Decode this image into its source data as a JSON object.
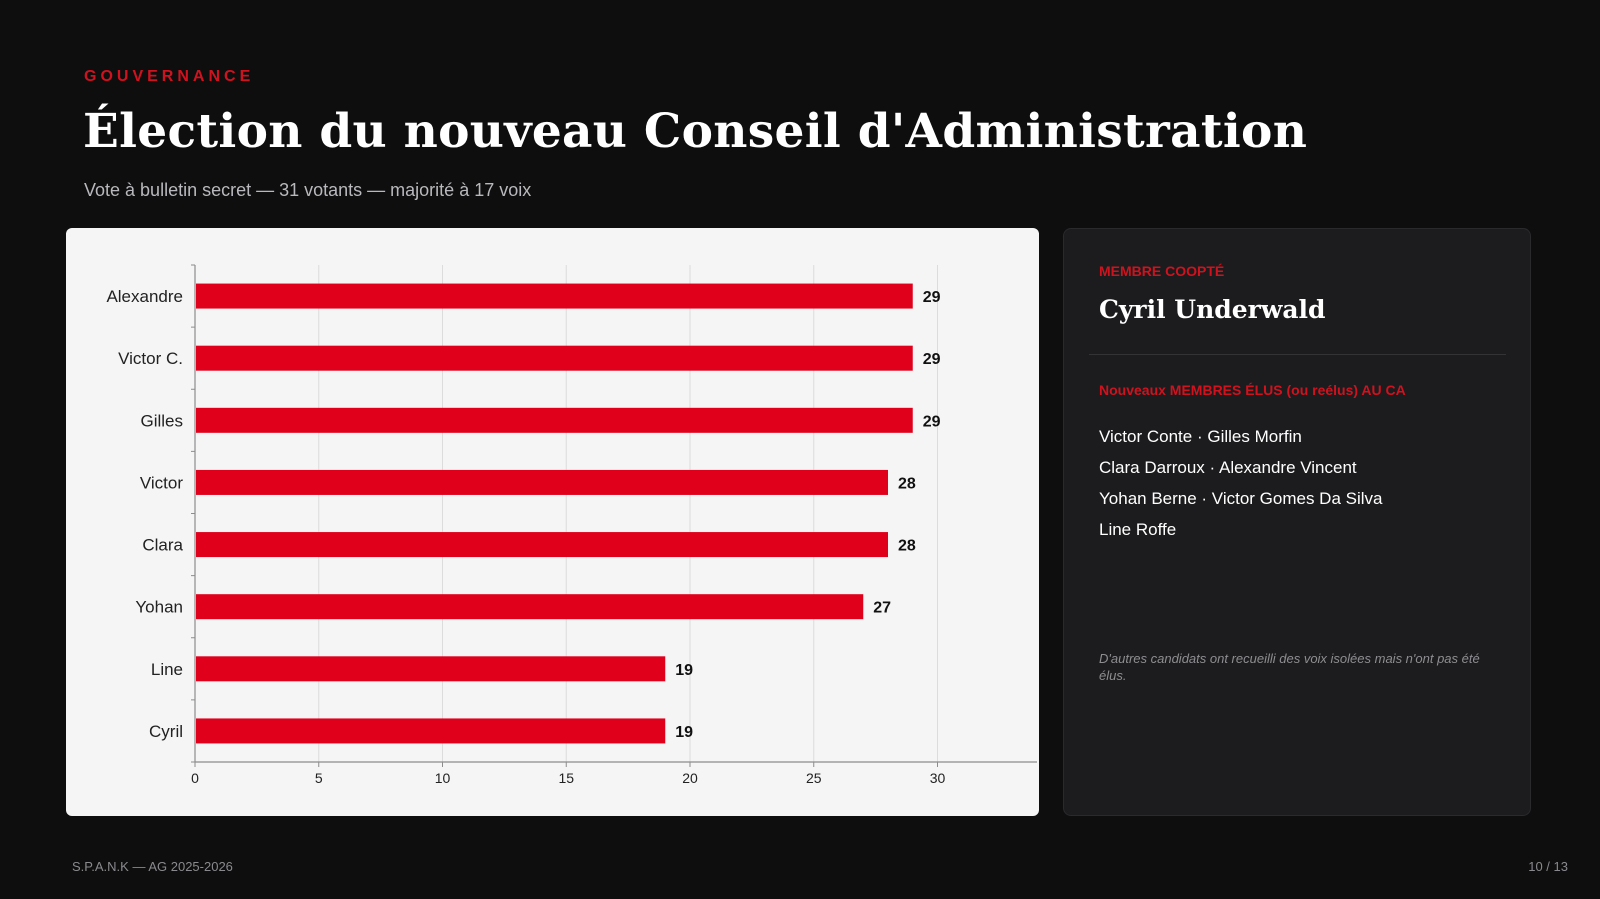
{
  "header": {
    "eyebrow": "GOUVERNANCE",
    "title": "Élection du nouveau Conseil d'Administration",
    "subtitle": "Vote à bulletin secret — 31 votants — majorité à 17 voix"
  },
  "chart_data": {
    "type": "bar",
    "orientation": "horizontal",
    "categories": [
      "Alexandre",
      "Victor C.",
      "Gilles",
      "Victor",
      "Clara",
      "Yohan",
      "Line",
      "Cyril"
    ],
    "values": [
      29,
      29,
      29,
      28,
      28,
      27,
      19,
      19
    ],
    "xlim": [
      0,
      32
    ],
    "xticks": [
      0,
      5,
      10,
      15,
      20,
      25,
      30
    ],
    "grid": true,
    "bar_color": "#e0001b",
    "show_value_labels": true
  },
  "side_panel": {
    "coopted_label": "MEMBRE COOPTÉ",
    "coopted_name": "Cyril Underwald",
    "elected_label": "Nouveaux MEMBRES ÉLUS (ou reélus) AU CA",
    "elected_lines": [
      "Victor Conte · Gilles Morfin",
      "Clara Darroux · Alexandre Vincent",
      "Yohan Berne · Victor Gomes Da Silva",
      "Line Roffe"
    ],
    "footnote": "D'autres candidats ont recueilli des voix isolées mais n'ont pas été élus."
  },
  "footer": {
    "left": "S.P.A.N.K — AG 2025-2026",
    "right": "10 / 13"
  },
  "colors": {
    "accent": "#d0121f",
    "background": "#0e0e0f",
    "panel": "#1c1c1e",
    "chart_background": "#f5f5f5"
  }
}
